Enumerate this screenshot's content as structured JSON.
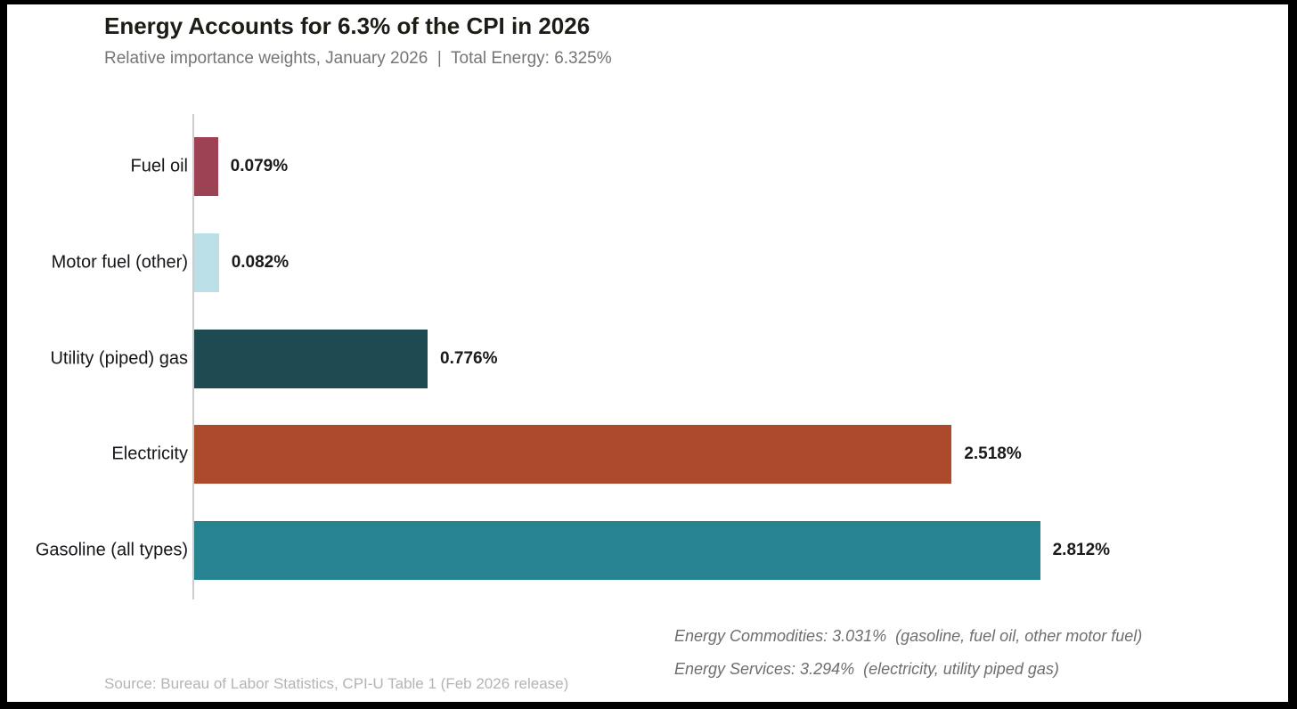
{
  "header": {
    "title": "Energy Accounts for 6.3% of the CPI in 2026",
    "subtitle": "Relative importance weights, January 2026  |  Total Energy: 6.325%"
  },
  "chart_data": {
    "type": "bar",
    "orientation": "horizontal",
    "title": "Energy Accounts for 6.3% of the CPI in 2026",
    "subtitle": "Relative importance weights, January 2026 | Total Energy: 6.325%",
    "categories": [
      "Fuel oil",
      "Motor fuel (other)",
      "Utility (piped) gas",
      "Electricity",
      "Gasoline (all types)"
    ],
    "values": [
      0.079,
      0.082,
      0.776,
      2.518,
      2.812
    ],
    "value_labels": [
      "0.079%",
      "0.082%",
      "0.776%",
      "2.518%",
      "2.812%"
    ],
    "bar_colors": [
      "#9c4254",
      "#bbdfe7",
      "#1e4a52",
      "#ad4a2b",
      "#27838f"
    ],
    "total_energy": "6.325%",
    "xlim": [
      0,
      2.9
    ],
    "grid": false,
    "legend": "none",
    "axis_line_color": "#cccccc"
  },
  "annotations": [
    "Energy Commodities: 3.031%  (gasoline, fuel oil, other motor fuel)",
    "Energy Services: 3.294%  (electricity, utility piped gas)"
  ],
  "footer": {
    "source": "Source: Bureau of Labor Statistics, CPI-U Table 1 (Feb 2026 release)"
  }
}
